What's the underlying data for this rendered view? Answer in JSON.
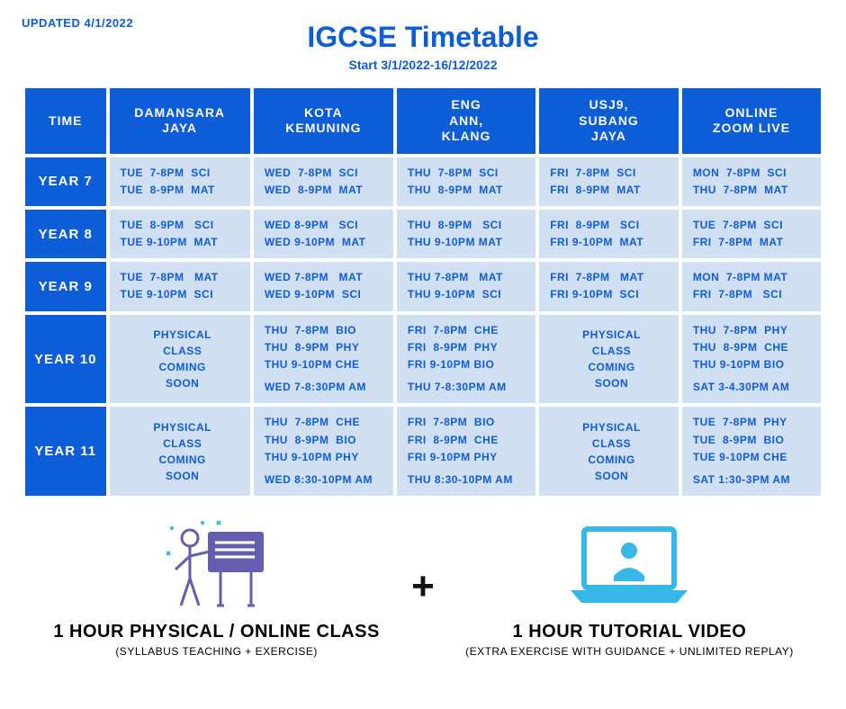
{
  "updated": "UPDATED 4/1/2022",
  "title": "IGCSE Timetable",
  "subtitle": "Start 3/1/2022-16/12/2022",
  "colors": {
    "primary": "#0d5cd8",
    "cell_bg": "#d1dff2",
    "text_dark": "#111111",
    "icon_accent": "#35b8e8",
    "icon_board": "#655db0"
  },
  "headers": [
    "TIME",
    "DAMANSARA JAYA",
    "KOTA KEMUNING",
    "ENG ANN, KLANG",
    "USJ9, SUBANG JAYA",
    "ONLINE ZOOM LIVE"
  ],
  "rows": [
    {
      "label": "YEAR 7",
      "cells": [
        {
          "lines": [
            "TUE  7-8PM  SCI",
            "TUE  8-9PM  MAT"
          ]
        },
        {
          "lines": [
            "WED  7-8PM  SCI",
            "WED  8-9PM  MAT"
          ]
        },
        {
          "lines": [
            "THU  7-8PM  SCI",
            "THU  8-9PM  MAT"
          ]
        },
        {
          "lines": [
            "FRI  7-8PM  SCI",
            "FRI  8-9PM  MAT"
          ]
        },
        {
          "lines": [
            "MON  7-8PM  SCI",
            "THU  7-8PM  MAT"
          ]
        }
      ]
    },
    {
      "label": "YEAR 8",
      "cells": [
        {
          "lines": [
            "TUE  8-9PM   SCI",
            "TUE 9-10PM  MAT"
          ]
        },
        {
          "lines": [
            "WED 8-9PM   SCI",
            "WED 9-10PM  MAT"
          ]
        },
        {
          "lines": [
            "THU  8-9PM   SCI",
            "THU 9-10PM MAT"
          ]
        },
        {
          "lines": [
            "FRI  8-9PM   SCI",
            "FRI 9-10PM  MAT"
          ]
        },
        {
          "lines": [
            "TUE  7-8PM  SCI",
            "FRI  7-8PM  MAT"
          ]
        }
      ]
    },
    {
      "label": "YEAR 9",
      "cells": [
        {
          "lines": [
            "TUE  7-8PM   MAT",
            "TUE 9-10PM  SCI"
          ]
        },
        {
          "lines": [
            "WED 7-8PM   MAT",
            "WED 9-10PM  SCI"
          ]
        },
        {
          "lines": [
            "THU 7-8PM   MAT",
            "THU 9-10PM  SCI"
          ]
        },
        {
          "lines": [
            "FRI  7-8PM   MAT",
            "FRI 9-10PM  SCI"
          ]
        },
        {
          "lines": [
            "MON  7-8PM MAT",
            "FRI  7-8PM   SCI"
          ]
        }
      ]
    },
    {
      "label": "YEAR 10",
      "cells": [
        {
          "coming": true,
          "lines": [
            "PHYSICAL",
            "CLASS",
            "COMING",
            "SOON"
          ]
        },
        {
          "lines": [
            "THU  7-8PM  BIO",
            "THU  8-9PM  PHY",
            "THU 9-10PM CHE"
          ],
          "sub": "WED 7-8:30PM AM"
        },
        {
          "lines": [
            "FRI  7-8PM  CHE",
            "FRI  8-9PM  PHY",
            "FRI 9-10PM BIO"
          ],
          "sub": "THU 7-8:30PM AM"
        },
        {
          "coming": true,
          "lines": [
            "PHYSICAL",
            "CLASS",
            "COMING",
            "SOON"
          ]
        },
        {
          "lines": [
            "THU  7-8PM  PHY",
            "THU  8-9PM  CHE",
            "THU 9-10PM BIO"
          ],
          "sub": "SAT 3-4.30PM AM"
        }
      ]
    },
    {
      "label": "YEAR 11",
      "cells": [
        {
          "coming": true,
          "lines": [
            "PHYSICAL",
            "CLASS",
            "COMING",
            "SOON"
          ]
        },
        {
          "lines": [
            "THU  7-8PM  CHE",
            "THU  8-9PM  BIO",
            "THU 9-10PM PHY"
          ],
          "sub": "WED 8:30-10PM AM"
        },
        {
          "lines": [
            "FRI  7-8PM  BIO",
            "FRI  8-9PM  CHE",
            "FRI 9-10PM PHY"
          ],
          "sub": "THU 8:30-10PM AM"
        },
        {
          "coming": true,
          "lines": [
            "PHYSICAL",
            "CLASS",
            "COMING",
            "SOON"
          ]
        },
        {
          "lines": [
            "TUE  7-8PM  PHY",
            "TUE  8-9PM  BIO",
            "TUE 9-10PM CHE"
          ],
          "sub": "SAT 1:30-3PM AM"
        }
      ]
    }
  ],
  "bottom": {
    "left_big": "1 HOUR PHYSICAL / ONLINE CLASS",
    "left_small": "(SYLLABUS TEACHING + EXERCISE)",
    "plus": "+",
    "right_big": "1 HOUR TUTORIAL VIDEO",
    "right_small": "(EXTRA EXERCISE WITH GUIDANCE + UNLIMITED REPLAY)"
  }
}
